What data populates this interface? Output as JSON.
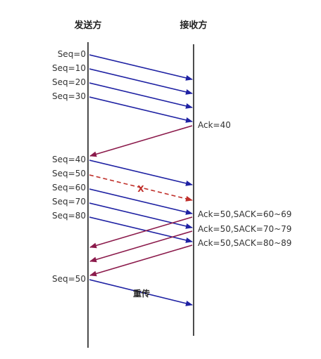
{
  "parties": {
    "sender": "发送方",
    "receiver": "接收方"
  },
  "colors": {
    "data": "#1f22a3",
    "ack": "#8b1a4b",
    "lost": "#c0302b",
    "timeline": "#111111"
  },
  "segments": [
    {
      "label": "Seq=0",
      "kind": "data"
    },
    {
      "label": "Seq=10",
      "kind": "data"
    },
    {
      "label": "Seq=20",
      "kind": "data"
    },
    {
      "label": "Seq=30",
      "kind": "data"
    },
    {
      "label": "Seq=40",
      "kind": "data"
    },
    {
      "label": "Seq=50",
      "kind": "lost"
    },
    {
      "label": "Seq=60",
      "kind": "data"
    },
    {
      "label": "Seq=70",
      "kind": "data"
    },
    {
      "label": "Seq=80",
      "kind": "data"
    },
    {
      "label": "Seq=50",
      "kind": "data"
    }
  ],
  "lost_mark": "X",
  "acks": [
    {
      "label": "Ack=40"
    },
    {
      "label": "Ack=50,SACK=60~69"
    },
    {
      "label": "Ack=50,SACK=70~79"
    },
    {
      "label": "Ack=50,SACK=80~89"
    }
  ],
  "retransmit_label": "重传"
}
